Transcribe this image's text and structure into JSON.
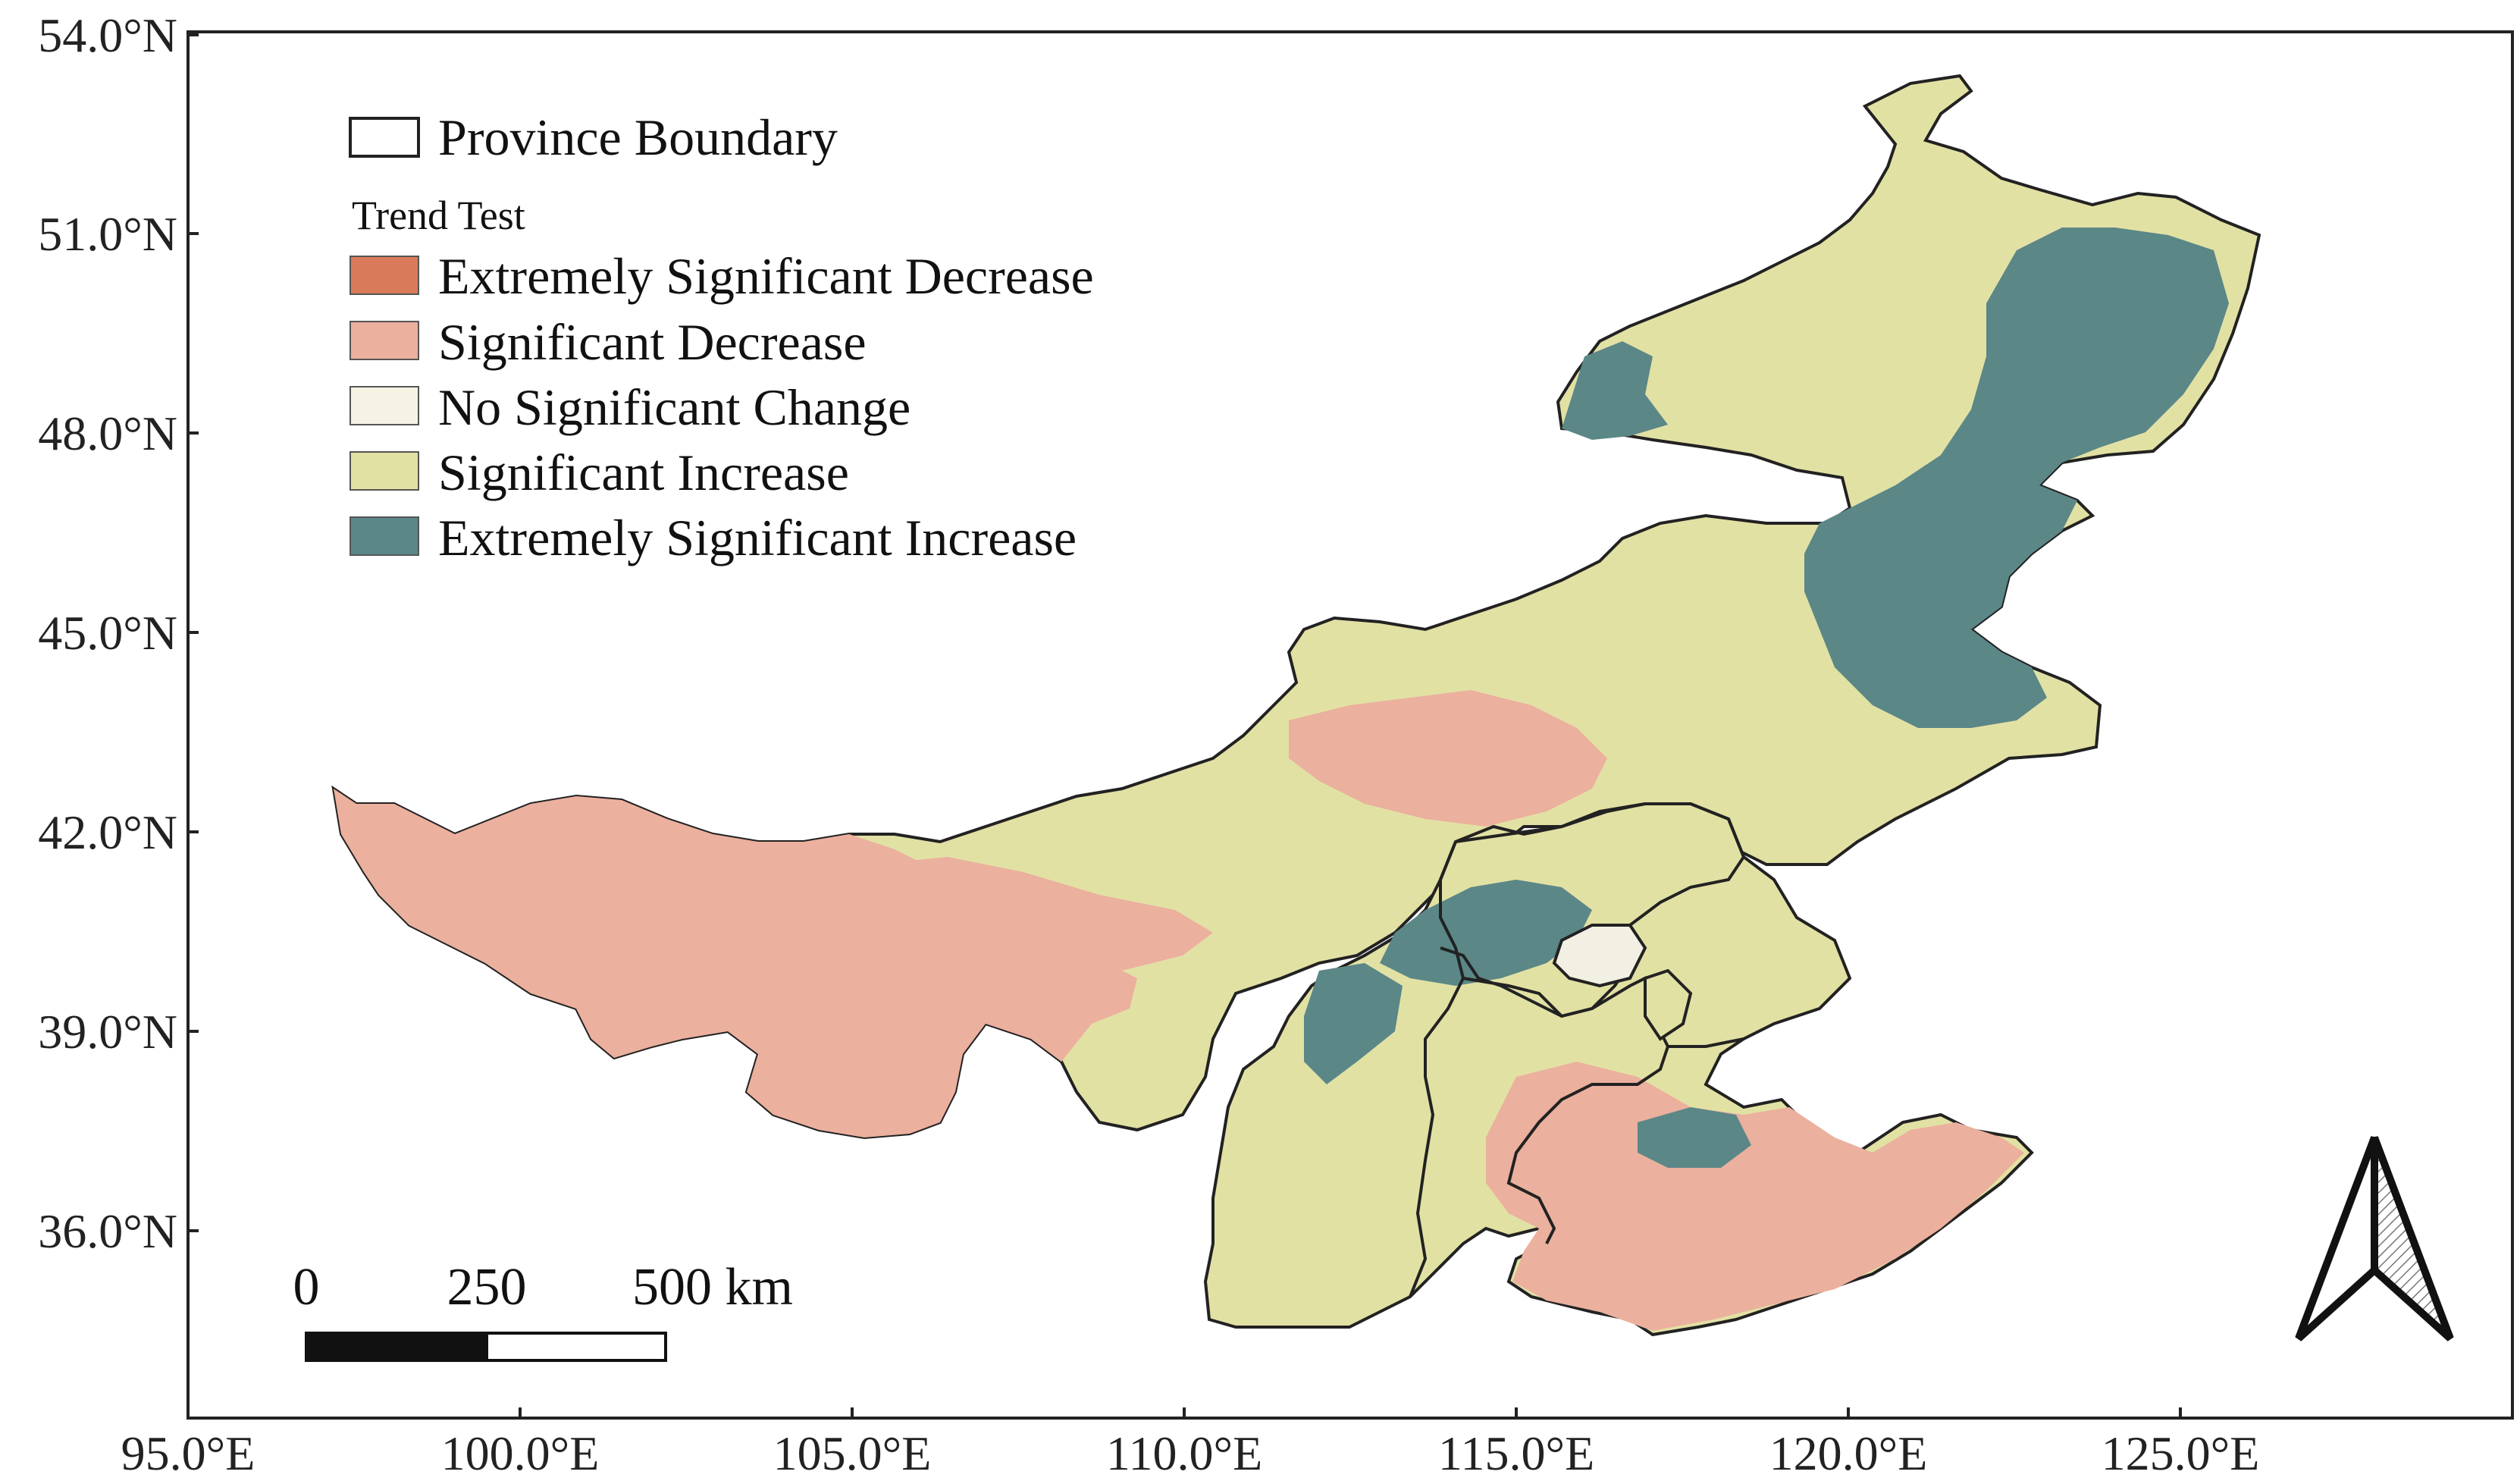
{
  "map": {
    "x_ticks": [
      "95.0°E",
      "100.0°E",
      "105.0°E",
      "110.0°E",
      "115.0°E",
      "120.0°E",
      "125.0°E"
    ],
    "y_ticks": [
      "54.0°N",
      "51.0°N",
      "48.0°N",
      "45.0°N",
      "42.0°N",
      "39.0°N",
      "36.0°N"
    ],
    "lon_range": [
      95.0,
      130.0
    ],
    "lat_range": [
      33.0,
      54.0
    ]
  },
  "legend": {
    "boundary_label": "Province Boundary",
    "title": "Trend Test",
    "items": [
      {
        "label": "Extremely Significant Decrease",
        "color": "#d97b5a"
      },
      {
        "label": "Significant Decrease",
        "color": "#ebb09e"
      },
      {
        "label": "No Significant Change",
        "color": "#f6f3e4"
      },
      {
        "label": "Significant Increase",
        "color": "#e2e1a4"
      },
      {
        "label": "Extremely Significant Increase",
        "color": "#5b8787"
      }
    ]
  },
  "scale_bar": {
    "labels": [
      "0",
      "250",
      "500 km"
    ]
  },
  "north_arrow": {
    "icon": "north-arrow-icon"
  }
}
